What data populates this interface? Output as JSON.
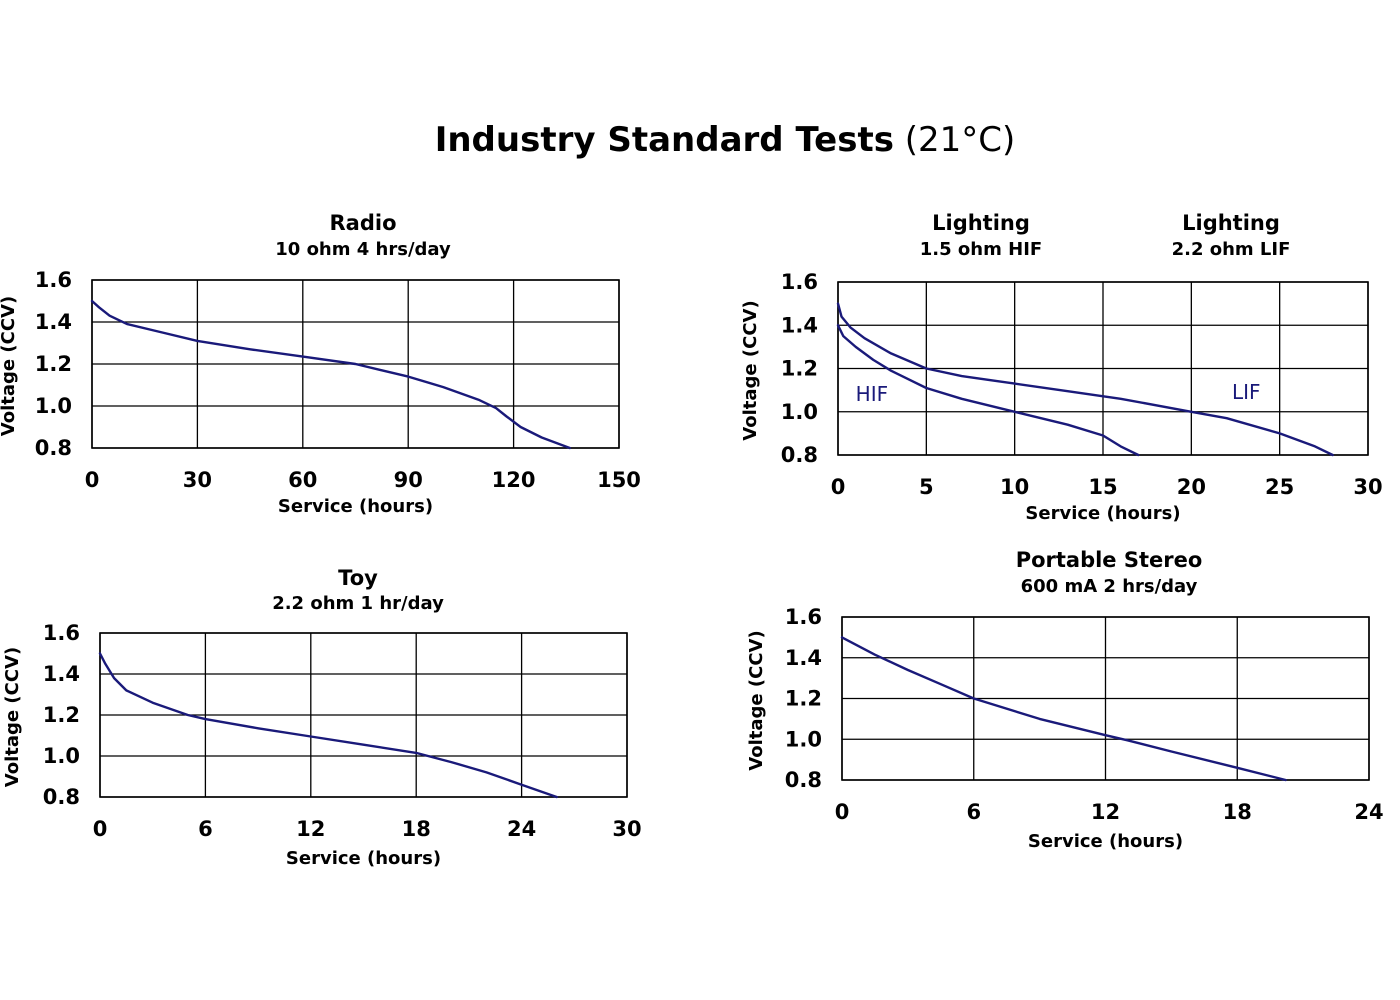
{
  "page": {
    "title_main": "Industry Standard Tests",
    "title_sub": "(21°C)"
  },
  "colors": {
    "curve": "#1a1a7a",
    "grid": "#000000"
  },
  "chart_data": [
    {
      "type": "line",
      "title": "Radio",
      "subtitle": "10 ohm 4 hrs/day",
      "xlabel": "Service (hours)",
      "ylabel": "Voltage (CCV)",
      "xlim": [
        0,
        150
      ],
      "ylim": [
        0.8,
        1.6
      ],
      "xticks": [
        0,
        30,
        60,
        90,
        120,
        150
      ],
      "yticks": [
        0.8,
        1.0,
        1.2,
        1.4,
        1.6
      ],
      "ytick_labels": [
        "0.8",
        "1.0",
        "1.2",
        "1.4",
        "1.6"
      ],
      "grid": true,
      "series": [
        {
          "x": [
            0,
            2,
            5,
            10,
            20,
            30,
            45,
            60,
            75,
            90,
            100,
            110,
            115,
            118,
            122,
            128,
            136
          ],
          "y": [
            1.5,
            1.47,
            1.43,
            1.39,
            1.35,
            1.31,
            1.27,
            1.235,
            1.2,
            1.14,
            1.09,
            1.03,
            0.99,
            0.95,
            0.9,
            0.85,
            0.8
          ]
        }
      ]
    },
    {
      "type": "line",
      "title": "Lighting",
      "subtitle": "1.5 ohm HIF",
      "title2": "Lighting",
      "subtitle2": "2.2 ohm LIF",
      "xlabel": "Service (hours)",
      "ylabel": "Voltage (CCV)",
      "xlim": [
        0,
        30
      ],
      "ylim": [
        0.8,
        1.6
      ],
      "xticks": [
        0,
        5,
        10,
        15,
        20,
        25,
        30
      ],
      "yticks": [
        0.8,
        1.0,
        1.2,
        1.4,
        1.6
      ],
      "ytick_labels": [
        "0.8",
        "1.0",
        "1.2",
        "1.4",
        "1.6"
      ],
      "grid": true,
      "annotations": [
        {
          "text": "HIF",
          "x": 1.0,
          "y": 1.05
        },
        {
          "text": "LIF",
          "x": 22.3,
          "y": 1.06
        }
      ],
      "series": [
        {
          "name": "HIF",
          "x": [
            0,
            0.3,
            1,
            2,
            3,
            5,
            7,
            10,
            13,
            15,
            16,
            17
          ],
          "y": [
            1.4,
            1.35,
            1.3,
            1.24,
            1.19,
            1.11,
            1.06,
            1.0,
            0.94,
            0.89,
            0.84,
            0.8
          ]
        },
        {
          "name": "LIF",
          "x": [
            0,
            0.2,
            0.7,
            1.5,
            3,
            5,
            7,
            10,
            13,
            16,
            20,
            22,
            25,
            27,
            28
          ],
          "y": [
            1.5,
            1.44,
            1.39,
            1.34,
            1.27,
            1.2,
            1.165,
            1.13,
            1.095,
            1.06,
            1.0,
            0.97,
            0.9,
            0.84,
            0.8
          ]
        }
      ]
    },
    {
      "type": "line",
      "title": "Toy",
      "subtitle": "2.2 ohm 1 hr/day",
      "xlabel": "Service (hours)",
      "ylabel": "Voltage (CCV)",
      "xlim": [
        0,
        30
      ],
      "ylim": [
        0.8,
        1.6
      ],
      "xticks": [
        0,
        6,
        12,
        18,
        24,
        30
      ],
      "yticks": [
        0.8,
        1.0,
        1.2,
        1.4,
        1.6
      ],
      "ytick_labels": [
        "0.8",
        "1.0",
        "1.2",
        "1.4",
        "1.6"
      ],
      "grid": true,
      "series": [
        {
          "x": [
            0,
            0.3,
            0.8,
            1.5,
            3,
            5,
            6,
            9,
            12,
            15,
            18,
            20,
            22,
            24,
            26
          ],
          "y": [
            1.5,
            1.45,
            1.38,
            1.32,
            1.26,
            1.2,
            1.18,
            1.135,
            1.095,
            1.055,
            1.015,
            0.97,
            0.92,
            0.86,
            0.8
          ]
        }
      ]
    },
    {
      "type": "line",
      "title": "Portable Stereo",
      "subtitle": "600 mA 2 hrs/day",
      "xlabel": "Service (hours)",
      "ylabel": "Voltage (CCV)",
      "xlim": [
        0,
        24
      ],
      "ylim": [
        0.8,
        1.6
      ],
      "xticks": [
        0,
        6,
        12,
        18,
        24
      ],
      "yticks": [
        0.8,
        1.0,
        1.2,
        1.4,
        1.6
      ],
      "ytick_labels": [
        "0.8",
        "1.0",
        "1.2",
        "1.4",
        "1.6"
      ],
      "grid": true,
      "series": [
        {
          "x": [
            0,
            1.5,
            3,
            4.5,
            6,
            9,
            12,
            13,
            15,
            18,
            20.2
          ],
          "y": [
            1.5,
            1.415,
            1.34,
            1.27,
            1.2,
            1.1,
            1.02,
            0.995,
            0.94,
            0.86,
            0.8
          ]
        }
      ]
    }
  ]
}
